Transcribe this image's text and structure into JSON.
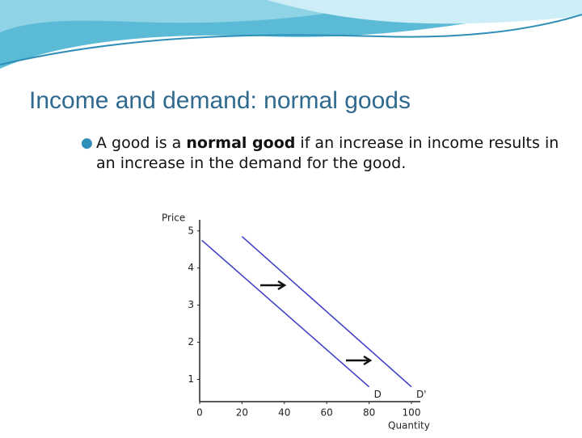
{
  "slide": {
    "title": "Income and demand: normal goods",
    "bullet": {
      "before": "A good is a ",
      "bold": "normal good",
      "after": " if an increase in income results in an increase in the demand for the good."
    }
  },
  "chart_data": {
    "type": "line",
    "x_label": "Quantity",
    "y_label": "Price",
    "xlim": [
      0,
      100
    ],
    "xticks": [
      0,
      20,
      40,
      60,
      80,
      100
    ],
    "ylim": [
      0.4,
      5.3
    ],
    "yticks": [
      1,
      2,
      3,
      4,
      5
    ],
    "series": [
      {
        "name": "D",
        "color": "#3b3bc4",
        "x": [
          1,
          80
        ],
        "values": [
          4.75,
          0.8
        ]
      },
      {
        "name": "D'",
        "color": "#3b3bc4",
        "x": [
          20,
          100
        ],
        "values": [
          4.85,
          0.8
        ]
      }
    ]
  }
}
